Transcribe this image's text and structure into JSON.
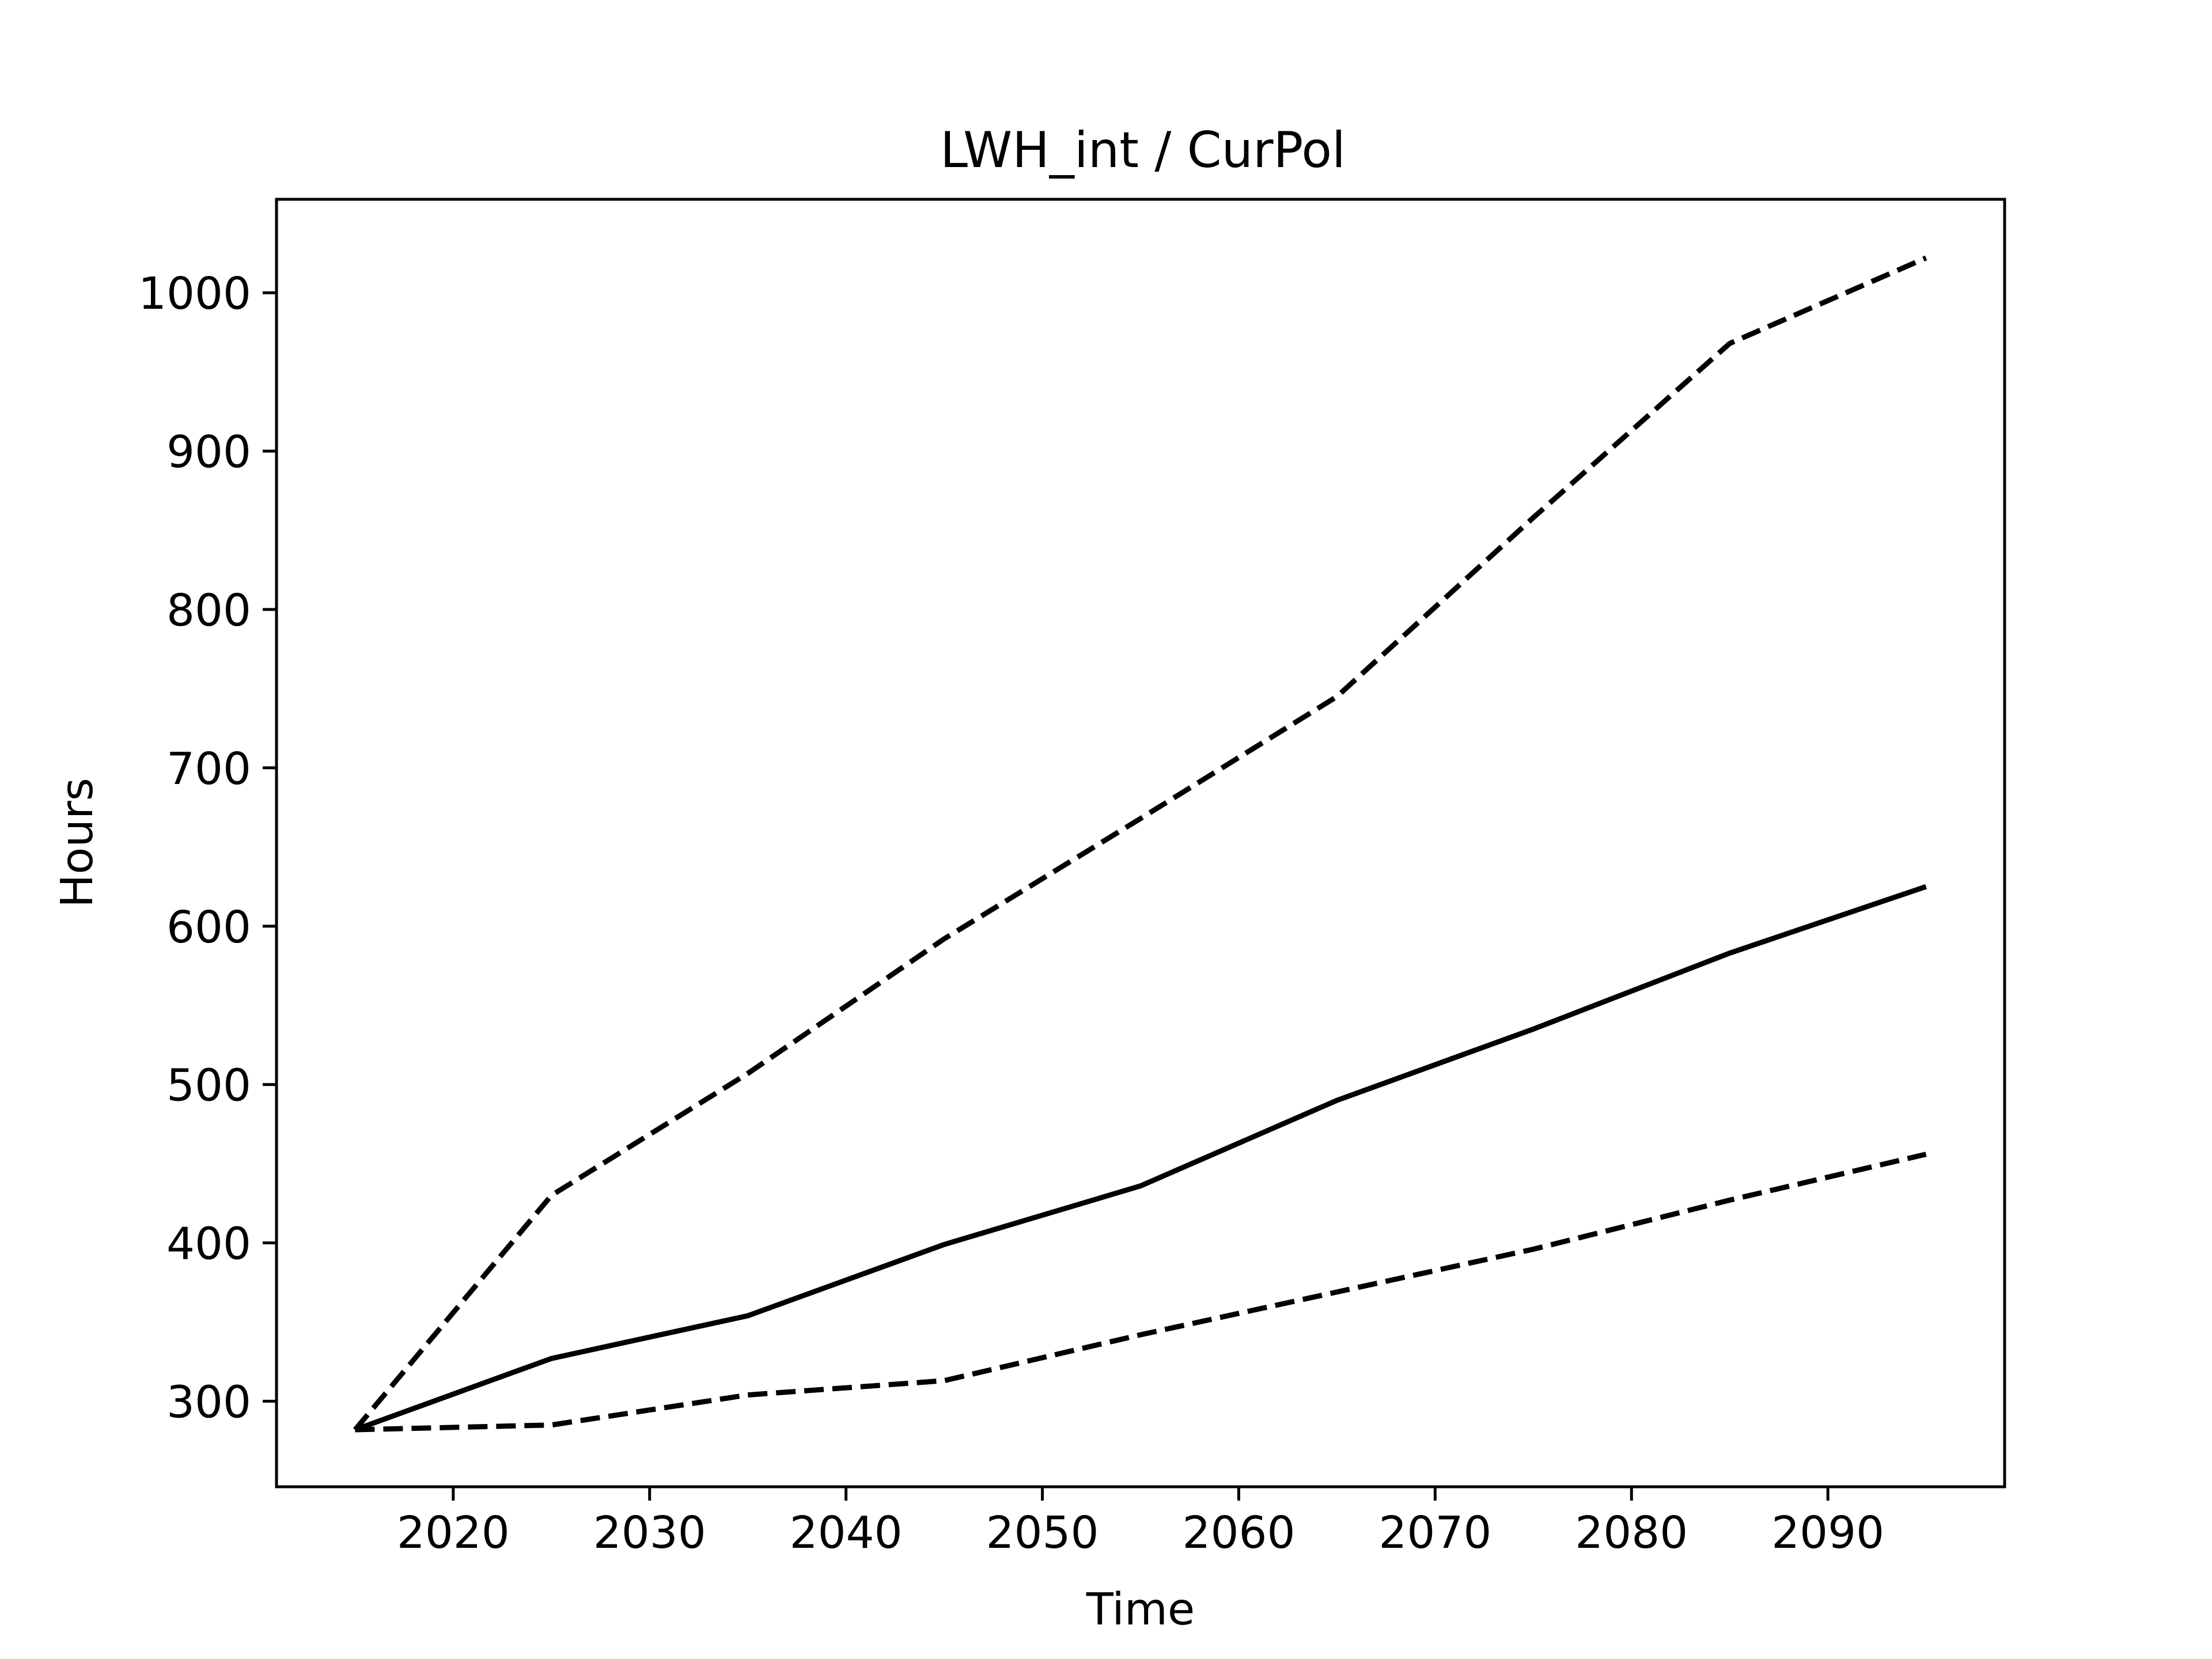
{
  "chart_data": {
    "type": "line",
    "title": "LWH_int / CurPol",
    "xlabel": "Time",
    "ylabel": "Hours",
    "xlim": [
      2011,
      2099
    ],
    "ylim": [
      246,
      1059
    ],
    "x_ticks": [
      2020,
      2030,
      2040,
      2050,
      2060,
      2070,
      2080,
      2090
    ],
    "y_ticks": [
      300,
      400,
      500,
      600,
      700,
      800,
      900,
      1000
    ],
    "grid": false,
    "legend": "none",
    "x": [
      2015,
      2025,
      2035,
      2045,
      2055,
      2065,
      2075,
      2085,
      2095
    ],
    "series": [
      {
        "style": "dashed",
        "color": "#000000",
        "values": [
          282,
          430,
          507,
          592,
          668,
          745,
          858,
          968,
          1022
        ]
      },
      {
        "style": "solid",
        "color": "#000000",
        "values": [
          282,
          327,
          354,
          399,
          436,
          490,
          535,
          583,
          625
        ]
      },
      {
        "style": "dashed",
        "color": "#000000",
        "values": [
          282,
          285,
          304,
          313,
          342,
          369,
          396,
          427,
          456
        ]
      }
    ]
  }
}
